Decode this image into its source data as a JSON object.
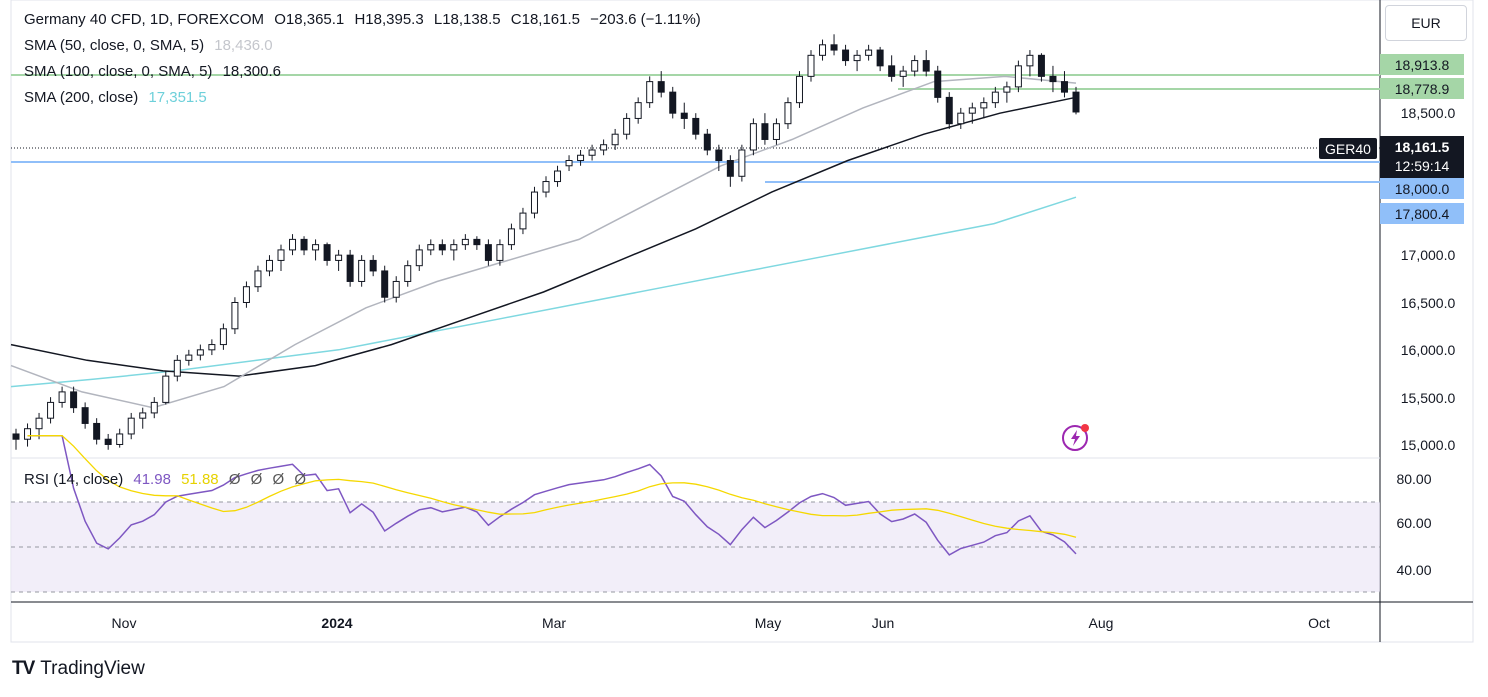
{
  "header": {
    "symbol": "Germany 40 CFD, 1D, FOREXCOM",
    "open_label": "O",
    "open": "18,365.1",
    "high_label": "H",
    "high": "18,395.3",
    "low_label": "L",
    "low": "18,138.5",
    "close_label": "C",
    "close": "18,161.5",
    "change": "−203.6 (−1.11%)",
    "currency_button": "EUR"
  },
  "indicators": [
    {
      "label": "SMA (50, close, 0, SMA, 5)",
      "value": "18,436.0",
      "color": "#b2b5be"
    },
    {
      "label": "SMA (100, close, 0, SMA, 5)",
      "value": "18,300.6",
      "color": "#131722"
    },
    {
      "label": "SMA (200, close)",
      "value": "17,351.5",
      "color": "#7fd8e0"
    }
  ],
  "rsi": {
    "label": "RSI (14, close)",
    "value": "41.98",
    "ma_value": "51.88",
    "extras": [
      "Ø",
      "Ø",
      "Ø",
      "Ø"
    ],
    "ticks": [
      "80.00",
      "60.00",
      "40.00"
    ]
  },
  "price_axis": {
    "ticks": [
      "18,500.0",
      "17,000.0",
      "16,500.0",
      "16,000.0",
      "15,500.0",
      "15,000.0"
    ],
    "levels": [
      {
        "label": "18,913.8",
        "color": "#a5d6a7"
      },
      {
        "label": "18,778.9",
        "color": "#a5d6a7"
      },
      {
        "label": "18,000.0",
        "color": "#90bff9"
      },
      {
        "label": "17,800.4",
        "color": "#90bff9"
      }
    ],
    "last_price": "18,161.5",
    "countdown": "12:59:14",
    "symbol_tag": "GER40"
  },
  "time_axis": [
    "Nov",
    "2024",
    "Mar",
    "May",
    "Jun",
    "Aug",
    "Oct"
  ],
  "branding": {
    "name": "TradingView",
    "mark": "TV"
  },
  "chart_data": {
    "type": "candlestick",
    "ylim": [
      14900,
      19150
    ],
    "series": [
      {
        "name": "GER40",
        "points": [
          [
            15100,
            15150,
            14950,
            15050
          ],
          [
            15050,
            15200,
            14980,
            15150
          ],
          [
            15150,
            15300,
            15050,
            15250
          ],
          [
            15250,
            15450,
            15200,
            15400
          ],
          [
            15400,
            15550,
            15350,
            15500
          ],
          [
            15500,
            15550,
            15300,
            15350
          ],
          [
            15350,
            15400,
            15150,
            15200
          ],
          [
            15200,
            15250,
            15000,
            15050
          ],
          [
            15050,
            15100,
            14950,
            15000
          ],
          [
            15000,
            15150,
            14970,
            15100
          ],
          [
            15100,
            15300,
            15050,
            15250
          ],
          [
            15250,
            15350,
            15150,
            15300
          ],
          [
            15300,
            15450,
            15250,
            15400
          ],
          [
            15400,
            15700,
            15380,
            15650
          ],
          [
            15650,
            15850,
            15600,
            15800
          ],
          [
            15800,
            15900,
            15750,
            15850
          ],
          [
            15850,
            15950,
            15800,
            15900
          ],
          [
            15900,
            16000,
            15850,
            15950
          ],
          [
            15950,
            16150,
            15900,
            16100
          ],
          [
            16100,
            16400,
            16050,
            16350
          ],
          [
            16350,
            16550,
            16300,
            16500
          ],
          [
            16500,
            16700,
            16450,
            16650
          ],
          [
            16650,
            16800,
            16600,
            16750
          ],
          [
            16750,
            16900,
            16650,
            16850
          ],
          [
            16850,
            17000,
            16800,
            16950
          ],
          [
            16950,
            16980,
            16800,
            16850
          ],
          [
            16850,
            16950,
            16750,
            16900
          ],
          [
            16900,
            16920,
            16700,
            16750
          ],
          [
            16750,
            16850,
            16650,
            16800
          ],
          [
            16800,
            16850,
            16500,
            16550
          ],
          [
            16550,
            16800,
            16500,
            16750
          ],
          [
            16750,
            16800,
            16600,
            16650
          ],
          [
            16650,
            16700,
            16350,
            16400
          ],
          [
            16400,
            16600,
            16350,
            16550
          ],
          [
            16550,
            16750,
            16500,
            16700
          ],
          [
            16700,
            16900,
            16650,
            16850
          ],
          [
            16850,
            16950,
            16800,
            16900
          ],
          [
            16900,
            16950,
            16800,
            16850
          ],
          [
            16850,
            16950,
            16750,
            16900
          ],
          [
            16900,
            17000,
            16850,
            16950
          ],
          [
            16950,
            16980,
            16850,
            16900
          ],
          [
            16900,
            16950,
            16700,
            16750
          ],
          [
            16750,
            16950,
            16700,
            16900
          ],
          [
            16900,
            17100,
            16850,
            17050
          ],
          [
            17050,
            17250,
            17000,
            17200
          ],
          [
            17200,
            17450,
            17150,
            17400
          ],
          [
            17400,
            17550,
            17350,
            17500
          ],
          [
            17500,
            17650,
            17450,
            17600
          ],
          [
            17650,
            17750,
            17600,
            17700
          ],
          [
            17700,
            17800,
            17650,
            17750
          ],
          [
            17750,
            17850,
            17700,
            17800
          ],
          [
            17800,
            17900,
            17750,
            17850
          ],
          [
            17850,
            18000,
            17800,
            17950
          ],
          [
            17950,
            18150,
            17900,
            18100
          ],
          [
            18100,
            18300,
            18050,
            18250
          ],
          [
            18250,
            18500,
            18200,
            18450
          ],
          [
            18450,
            18550,
            18300,
            18350
          ],
          [
            18350,
            18400,
            18100,
            18150
          ],
          [
            18150,
            18250,
            18000,
            18100
          ],
          [
            18100,
            18150,
            17900,
            17950
          ],
          [
            17950,
            18000,
            17750,
            17800
          ],
          [
            17800,
            17850,
            17600,
            17700
          ],
          [
            17700,
            17750,
            17450,
            17550
          ],
          [
            17550,
            17850,
            17500,
            17800
          ],
          [
            17800,
            18100,
            17750,
            18050
          ],
          [
            18050,
            18150,
            17850,
            17900
          ],
          [
            17900,
            18100,
            17850,
            18050
          ],
          [
            18050,
            18300,
            18000,
            18250
          ],
          [
            18250,
            18550,
            18200,
            18500
          ],
          [
            18500,
            18750,
            18450,
            18700
          ],
          [
            18700,
            18850,
            18650,
            18800
          ],
          [
            18800,
            18900,
            18700,
            18750
          ],
          [
            18750,
            18800,
            18600,
            18650
          ],
          [
            18650,
            18750,
            18550,
            18700
          ],
          [
            18700,
            18800,
            18650,
            18750
          ],
          [
            18750,
            18780,
            18550,
            18600
          ],
          [
            18600,
            18700,
            18450,
            18500
          ],
          [
            18500,
            18600,
            18400,
            18550
          ],
          [
            18550,
            18700,
            18500,
            18650
          ],
          [
            18650,
            18750,
            18500,
            18550
          ],
          [
            18550,
            18600,
            18250,
            18300
          ],
          [
            18300,
            18350,
            18000,
            18050
          ],
          [
            18050,
            18200,
            18000,
            18150
          ],
          [
            18150,
            18250,
            18050,
            18200
          ],
          [
            18200,
            18300,
            18100,
            18250
          ],
          [
            18250,
            18400,
            18200,
            18350
          ],
          [
            18350,
            18450,
            18250,
            18400
          ],
          [
            18400,
            18650,
            18350,
            18600
          ],
          [
            18600,
            18750,
            18500,
            18700
          ],
          [
            18700,
            18720,
            18450,
            18500
          ],
          [
            18500,
            18600,
            18350,
            18450
          ],
          [
            18450,
            18550,
            18300,
            18350
          ],
          [
            18350,
            18400,
            18138.5,
            18161.5
          ]
        ]
      }
    ],
    "sma_200": {
      "name": "SMA (200, close)",
      "values": [
        15550,
        15620,
        15700,
        15800,
        15900,
        16050,
        16200,
        16350,
        16500,
        16650,
        16800,
        16950,
        17100,
        17351.5
      ]
    },
    "sma_100": {
      "name": "SMA (100, close, 0, SMA, 5)",
      "values": [
        15950,
        15800,
        15700,
        15650,
        15750,
        15950,
        16200,
        16450,
        16750,
        17050,
        17400,
        17700,
        17950,
        18150,
        18300.6
      ]
    },
    "sma_50": {
      "name": "SMA (50, close, 0, SMA, 5)",
      "values": [
        15750,
        15500,
        15350,
        15550,
        15950,
        16300,
        16550,
        16750,
        16950,
        17300,
        17650,
        17900,
        18200,
        18450,
        18500,
        18436.0
      ]
    }
  }
}
